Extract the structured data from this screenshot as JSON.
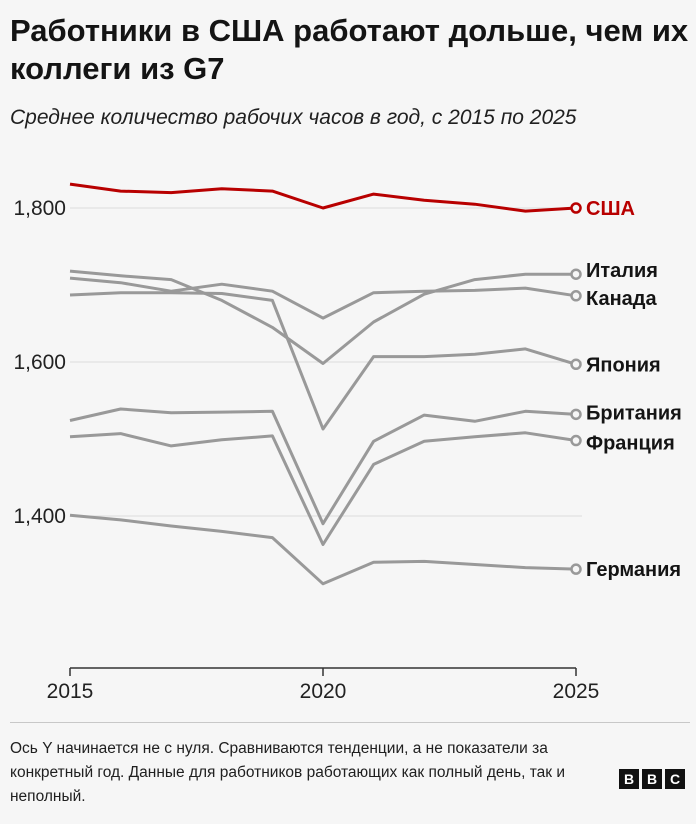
{
  "title": "Работники в США работают дольше, чем их коллеги из G7",
  "subtitle": "Среднее количество рабочих часов в год, с 2015 по 2025",
  "footnote": "Ось Y начинается не с нуля. Сравниваются тенденции, а не показатели за конкретный год. Данные для работников работающих как полный день, так и неполный.",
  "logo": [
    "B",
    "B",
    "C"
  ],
  "chart_data": {
    "type": "line",
    "x": [
      2015,
      2016,
      2017,
      2018,
      2019,
      2020,
      2021,
      2022,
      2023,
      2024,
      2025
    ],
    "xticks": [
      "2015",
      "2020",
      "2025"
    ],
    "yticks": [
      "1,400",
      "1,600",
      "1,800"
    ],
    "ylim": [
      1200,
      1850
    ],
    "xlim": [
      2015,
      2025
    ],
    "grid": true,
    "series": [
      {
        "name": "США",
        "color": "#b80000",
        "values": [
          1831,
          1822,
          1820,
          1825,
          1822,
          1800,
          1818,
          1810,
          1805,
          1796,
          1800
        ]
      },
      {
        "name": "Италия",
        "color": "#999999",
        "values": [
          1718,
          1712,
          1707,
          1680,
          1645,
          1598,
          1652,
          1688,
          1707,
          1714,
          1714
        ]
      },
      {
        "name": "Канада",
        "color": "#999999",
        "values": [
          1709,
          1703,
          1692,
          1701,
          1692,
          1657,
          1690,
          1692,
          1693,
          1696,
          1686
        ]
      },
      {
        "name": "Япония",
        "color": "#999999",
        "values": [
          1687,
          1690,
          1690,
          1689,
          1680,
          1513,
          1607,
          1607,
          1610,
          1617,
          1597
        ]
      },
      {
        "name": "Британия",
        "color": "#999999",
        "values": [
          1524,
          1539,
          1534,
          1535,
          1536,
          1390,
          1497,
          1531,
          1523,
          1536,
          1532
        ]
      },
      {
        "name": "Франция",
        "color": "#999999",
        "values": [
          1503,
          1507,
          1491,
          1499,
          1504,
          1363,
          1467,
          1497,
          1503,
          1508,
          1498
        ]
      },
      {
        "name": "Германия",
        "color": "#999999",
        "values": [
          1401,
          1395,
          1387,
          1380,
          1372,
          1312,
          1340,
          1341,
          1337,
          1333,
          1331
        ]
      }
    ]
  }
}
